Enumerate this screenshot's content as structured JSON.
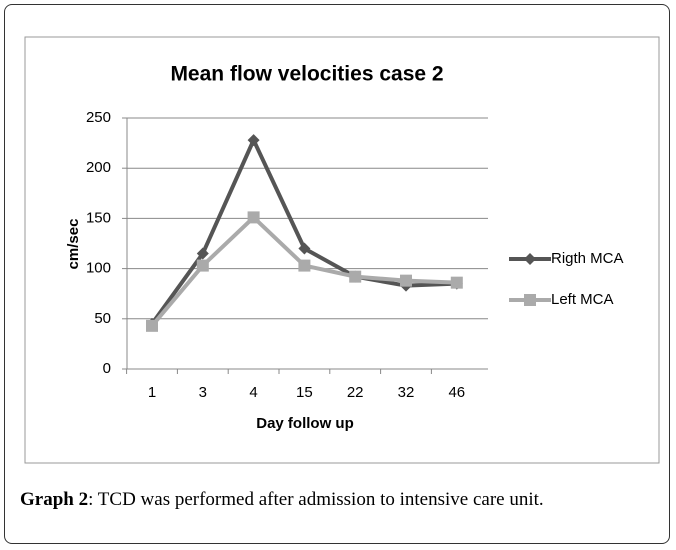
{
  "chart_data": {
    "type": "line",
    "title": "Mean flow velocities case 2",
    "xlabel": "Day follow up",
    "ylabel": "cm/sec",
    "categories": [
      "1",
      "3",
      "4",
      "15",
      "22",
      "32",
      "46"
    ],
    "series": [
      {
        "name": "Rigth MCA",
        "color": "#555555",
        "marker": "diamond",
        "values": [
          45,
          115,
          228,
          120,
          92,
          83,
          85
        ]
      },
      {
        "name": "Left MCA",
        "color": "#aaaaaa",
        "marker": "square",
        "values": [
          43,
          103,
          151,
          103,
          92,
          88,
          86
        ]
      }
    ],
    "ylim": [
      0,
      250
    ],
    "yticks": [
      0,
      50,
      100,
      150,
      200,
      250
    ],
    "grid": true,
    "legend": "right"
  },
  "caption": {
    "label": "Graph 2",
    "text": ": TCD was performed after admission to intensive care unit."
  }
}
